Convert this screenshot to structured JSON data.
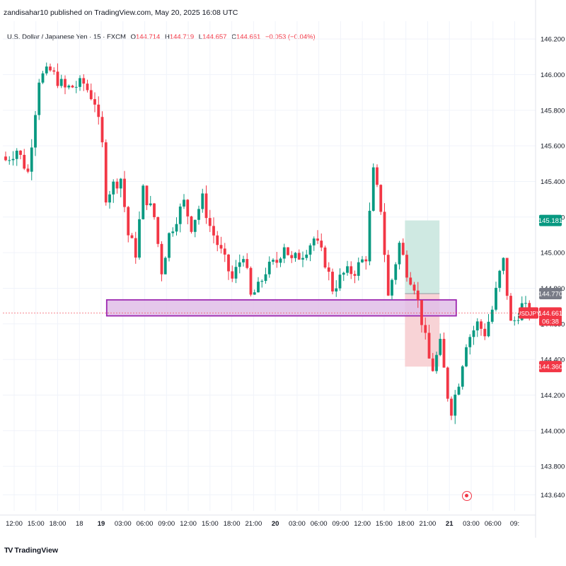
{
  "publisher_line": "zandisahar10 published on TradingView.com, May 20, 2025 16:08 UTC",
  "legend": {
    "symbol_desc": "U.S. Dollar / Japanese Yen · 15 · FXCM",
    "open_label": "O",
    "open": "144.714",
    "high_label": "H",
    "high": "144.719",
    "low_label": "L",
    "low": "144.657",
    "close_label": "C",
    "close": "144.661",
    "change": "−0.053 (−0.04%)"
  },
  "brand": {
    "logo": "TV",
    "name": "TradingView"
  },
  "colors": {
    "up": "#089981",
    "down": "#f23645",
    "zone_fill": "#e1bee7",
    "zone_stroke": "#9c27b0",
    "target_fill": "#cfe9e2",
    "stop_fill": "#f8d3d6",
    "target_label": "#089981",
    "stop_label": "#f23645",
    "grid": "#f0f3fa",
    "text": "#131722"
  },
  "chart_data": {
    "type": "candlestick",
    "symbol": "USDJPY",
    "timeframe": "15",
    "ylim": [
      143.55,
      146.3
    ],
    "y_ticks": [
      "146.200",
      "146.000",
      "145.800",
      "145.600",
      "145.400",
      "145.200",
      "145.000",
      "144.800",
      "144.600",
      "144.400",
      "144.200",
      "144.000",
      "143.800",
      "143.640"
    ],
    "x_ticks": [
      "12:00",
      "15:00",
      "18:00",
      "18",
      "19",
      "03:00",
      "06:00",
      "09:00",
      "12:00",
      "15:00",
      "18:00",
      "21:00",
      "20",
      "03:00",
      "06:00",
      "09:00",
      "12:00",
      "15:00",
      "18:00",
      "21:00",
      "21",
      "03:00",
      "06:00",
      "09:"
    ],
    "x_tick_bold": [
      false,
      false,
      false,
      false,
      true,
      false,
      false,
      false,
      false,
      false,
      false,
      false,
      true,
      false,
      false,
      false,
      false,
      false,
      false,
      false,
      true,
      false,
      false,
      false
    ],
    "path_keypoints": [
      [
        0,
        145.52
      ],
      [
        3,
        145.58
      ],
      [
        6,
        145.45
      ],
      [
        9,
        145.98
      ],
      [
        12,
        146.02
      ],
      [
        16,
        145.92
      ],
      [
        21,
        145.95
      ],
      [
        24,
        145.85
      ],
      [
        26,
        145.6
      ],
      [
        27,
        145.32
      ],
      [
        29,
        145.38
      ],
      [
        31,
        145.42
      ],
      [
        33,
        145.1
      ],
      [
        35,
        145.0
      ],
      [
        37,
        145.35
      ],
      [
        40,
        145.2
      ],
      [
        42,
        144.9
      ],
      [
        44,
        145.1
      ],
      [
        46,
        145.2
      ],
      [
        48,
        145.28
      ],
      [
        50,
        145.15
      ],
      [
        53,
        145.3
      ],
      [
        55,
        145.15
      ],
      [
        58,
        145.0
      ],
      [
        61,
        144.85
      ],
      [
        64,
        145.0
      ],
      [
        66,
        144.75
      ],
      [
        68,
        144.8
      ],
      [
        70,
        144.9
      ],
      [
        73,
        144.95
      ],
      [
        75,
        145.05
      ],
      [
        77,
        144.95
      ],
      [
        80,
        145.0
      ],
      [
        83,
        145.08
      ],
      [
        86,
        144.95
      ],
      [
        88,
        144.8
      ],
      [
        91,
        144.88
      ],
      [
        94,
        144.9
      ],
      [
        97,
        144.98
      ],
      [
        99,
        145.45
      ],
      [
        101,
        145.25
      ],
      [
        103,
        144.75
      ],
      [
        105,
        144.95
      ],
      [
        106,
        145.05
      ],
      [
        108,
        144.9
      ],
      [
        110,
        144.82
      ],
      [
        112,
        144.62
      ],
      [
        114,
        144.4
      ],
      [
        115,
        144.35
      ],
      [
        117,
        144.48
      ],
      [
        119,
        144.2
      ],
      [
        120,
        144.12
      ],
      [
        122,
        144.28
      ],
      [
        124,
        144.5
      ],
      [
        127,
        144.6
      ],
      [
        129,
        144.55
      ],
      [
        131,
        144.68
      ],
      [
        133,
        144.88
      ],
      [
        134,
        144.95
      ],
      [
        136,
        144.6
      ],
      [
        137,
        144.62
      ],
      [
        139,
        144.7
      ],
      [
        141,
        144.66
      ]
    ],
    "current_price": 144.661,
    "current_label": "USDJPY",
    "current_price_label": "144.661",
    "countdown": "06:38",
    "zone": {
      "top": 144.735,
      "bottom": 144.645
    },
    "position": {
      "type": "long",
      "entry": 144.77,
      "target": 145.181,
      "stop": 144.36
    },
    "labels": {
      "target": "145.181",
      "entry": "144.770",
      "stop": "144.360"
    }
  }
}
